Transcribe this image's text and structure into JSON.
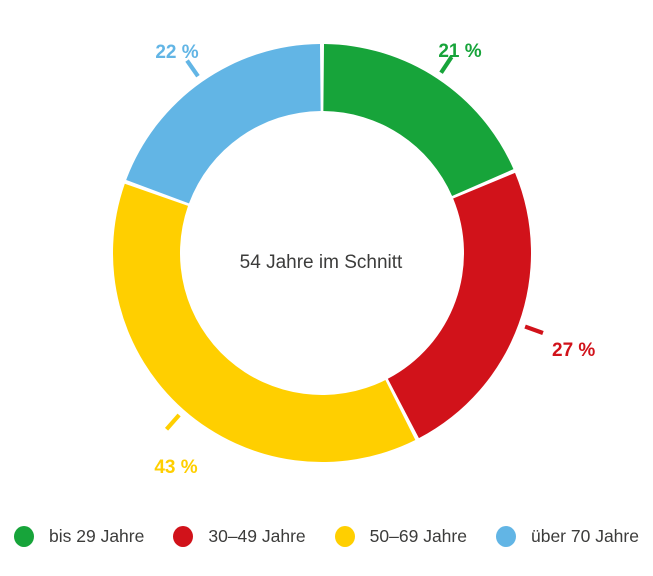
{
  "chart_data": {
    "type": "pie",
    "subtype": "donut",
    "center_label": "54 Jahre im Schnitt",
    "categories": [
      "bis 29 Jahre",
      "30–49 Jahre",
      "50–69 Jahre",
      "über 70 Jahre"
    ],
    "values": [
      21,
      27,
      43,
      22
    ],
    "value_labels": [
      "21 %",
      "27 %",
      "43 %",
      "22 %"
    ],
    "unit": "%",
    "colors": [
      "#17a43a",
      "#d1121a",
      "#ffcf00",
      "#62b5e5"
    ],
    "segment_order": "clockwise from 12 o'clock: bis 29 Jahre, 30–49 Jahre, 50–69 Jahre, über 70 Jahre",
    "legend_position": "bottom",
    "text_color": "#3c3c3b",
    "background_color": "#ffffff",
    "grid": false
  }
}
